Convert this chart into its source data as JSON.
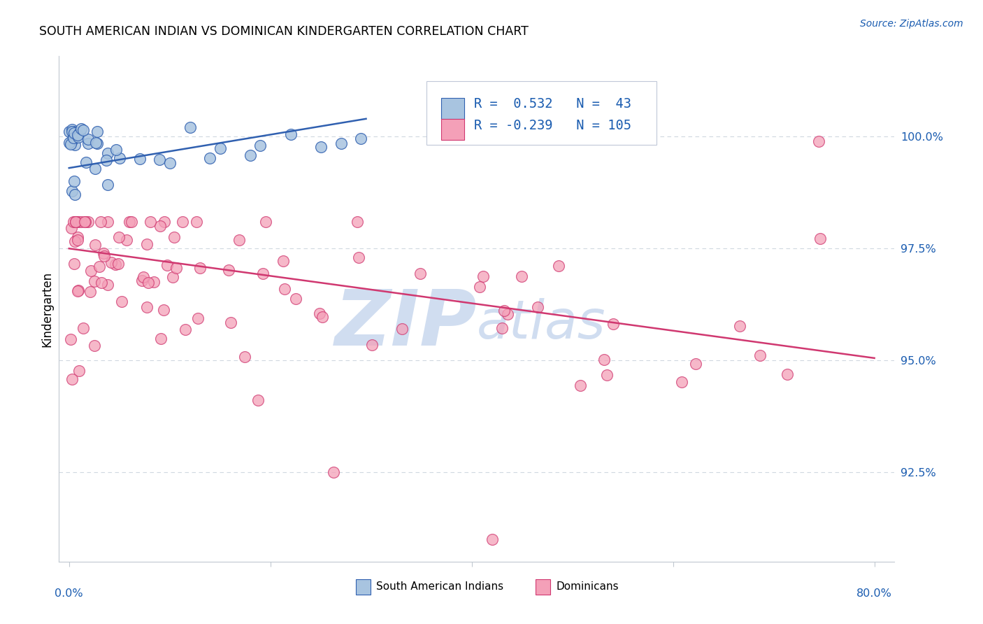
{
  "title": "SOUTH AMERICAN INDIAN VS DOMINICAN KINDERGARTEN CORRELATION CHART",
  "source": "Source: ZipAtlas.com",
  "ylabel": "Kindergarten",
  "ytick_labels": [
    "100.0%",
    "97.5%",
    "95.0%",
    "92.5%"
  ],
  "ytick_values": [
    1.0,
    0.975,
    0.95,
    0.925
  ],
  "xlim": [
    -0.01,
    0.82
  ],
  "ylim": [
    0.905,
    1.018
  ],
  "color_blue": "#a8c4e0",
  "color_pink": "#f4a0b8",
  "line_color_blue": "#3060b0",
  "line_color_pink": "#d03870",
  "watermark_color": "#d0ddf0",
  "grid_color": "#d0d8e0",
  "spine_color": "#c0c8d0"
}
